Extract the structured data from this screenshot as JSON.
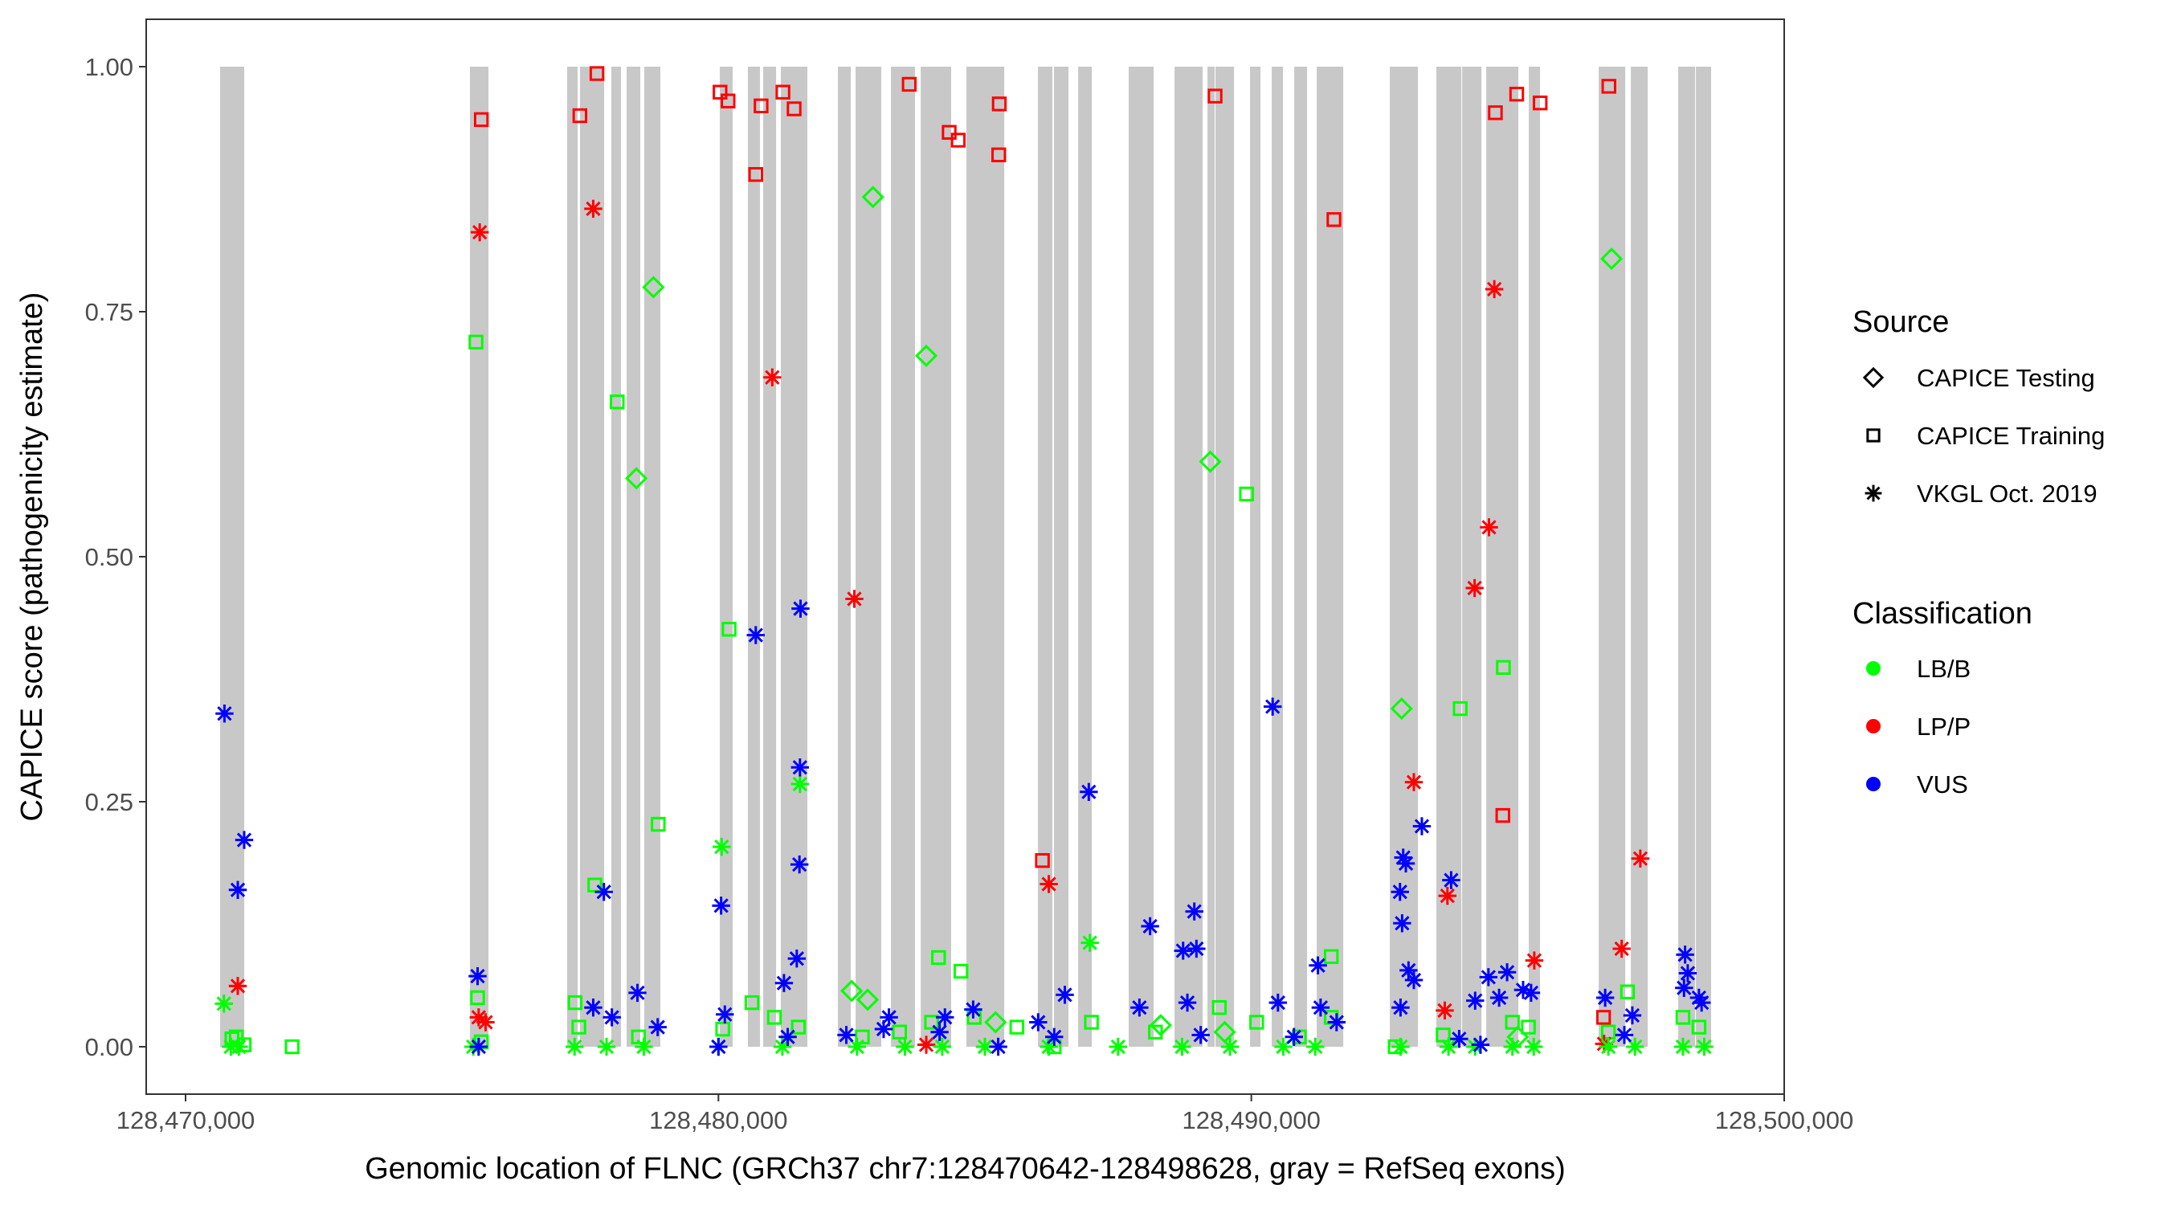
{
  "chart_data": {
    "type": "scatter",
    "title": "",
    "xlabel": "Genomic location of FLNC (GRCh37 chr7:128470642-128498628, gray = RefSeq exons)",
    "ylabel": "CAPICE score (pathogenicity estimate)",
    "xlim": [
      128469270,
      128500000
    ],
    "ylim": [
      -0.045,
      1.05
    ],
    "x_ticks": [
      128470000,
      128480000,
      128490000,
      128500000
    ],
    "x_tick_labels": [
      "128,470,000",
      "128,480,000",
      "128,490,000",
      "128,500,000"
    ],
    "y_ticks": [
      0,
      0.25,
      0.5,
      0.75,
      1.0
    ],
    "y_tick_labels": [
      "0.00",
      "0.25",
      "0.50",
      "0.75",
      "1.00"
    ],
    "grid": false,
    "exon_band_color": "#c8c8c8",
    "exons": [
      [
        128470648,
        128471101
      ],
      [
        128475337,
        128475684
      ],
      [
        128477161,
        128477357
      ],
      [
        128477402,
        128477855
      ],
      [
        128477990,
        128478171
      ],
      [
        128478277,
        128478533
      ],
      [
        128478608,
        128478910
      ],
      [
        128480026,
        128480267
      ],
      [
        128480553,
        128480780
      ],
      [
        128480840,
        128481081
      ],
      [
        128481171,
        128481669
      ],
      [
        128482242,
        128482483
      ],
      [
        128482574,
        128483056
      ],
      [
        128483237,
        128483689
      ],
      [
        128483795,
        128484367
      ],
      [
        128484654,
        128485363
      ],
      [
        128485996,
        128486267
      ],
      [
        128486297,
        128486569
      ],
      [
        128486750,
        128487006
      ],
      [
        128487699,
        128488167
      ],
      [
        128488559,
        128489086
      ],
      [
        128489177,
        128489312
      ],
      [
        128489328,
        128489675
      ],
      [
        128489976,
        128490172
      ],
      [
        128490383,
        128490594
      ],
      [
        128490805,
        128491046
      ],
      [
        128491227,
        128491725
      ],
      [
        128492599,
        128493127
      ],
      [
        128493473,
        128493941
      ],
      [
        128493956,
        128494318
      ],
      [
        128494408,
        128495011
      ],
      [
        128495207,
        128495418
      ],
      [
        128496519,
        128497017
      ],
      [
        128497122,
        128497439
      ],
      [
        128498011,
        128498328
      ],
      [
        128498343,
        128498628
      ]
    ],
    "legend": {
      "position": "right",
      "source_title": "Source",
      "source_items": [
        {
          "key": "testing",
          "label": "CAPICE Testing",
          "shape": "diamond"
        },
        {
          "key": "training",
          "label": "CAPICE Training",
          "shape": "square"
        },
        {
          "key": "vkgl",
          "label": "VKGL Oct. 2019",
          "shape": "asterisk"
        }
      ],
      "class_title": "Classification",
      "class_items": [
        {
          "key": "LB/B",
          "label": "LB/B",
          "color": "#00ff00"
        },
        {
          "key": "LP/P",
          "label": "LP/P",
          "color": "#ff0000"
        },
        {
          "key": "VUS",
          "label": "VUS",
          "color": "#0000ff"
        }
      ]
    },
    "series": [
      {
        "name": "CAPICE Training / LP/P",
        "source": "training",
        "class": "LP/P",
        "points": [
          [
            128475550,
            0.946
          ],
          [
            128477400,
            0.95
          ],
          [
            128477720,
            0.993
          ],
          [
            128480030,
            0.974
          ],
          [
            128480180,
            0.965
          ],
          [
            128480700,
            0.89
          ],
          [
            128480800,
            0.96
          ],
          [
            128481210,
            0.974
          ],
          [
            128481420,
            0.957
          ],
          [
            128483580,
            0.982
          ],
          [
            128484330,
            0.933
          ],
          [
            128484500,
            0.925
          ],
          [
            128485270,
            0.962
          ],
          [
            128485260,
            0.91
          ],
          [
            128489320,
            0.97
          ],
          [
            128491550,
            0.844
          ],
          [
            128486080,
            0.19
          ],
          [
            128494580,
            0.953
          ],
          [
            128494980,
            0.972
          ],
          [
            128495420,
            0.963
          ],
          [
            128494720,
            0.236
          ],
          [
            128496710,
            0.98
          ],
          [
            128496610,
            0.03
          ]
        ]
      },
      {
        "name": "CAPICE Training / LB/B",
        "source": "training",
        "class": "LB/B",
        "points": [
          [
            128475450,
            0.719
          ],
          [
            128478100,
            0.658
          ],
          [
            128477680,
            0.165
          ],
          [
            128480200,
            0.426
          ],
          [
            128478870,
            0.227
          ],
          [
            128484130,
            0.091
          ],
          [
            128484550,
            0.077
          ],
          [
            128489910,
            0.564
          ],
          [
            128491500,
            0.092
          ],
          [
            128493920,
            0.345
          ],
          [
            128494730,
            0.387
          ],
          [
            128497060,
            0.056
          ],
          [
            128470870,
            0.008
          ],
          [
            128470950,
            0.01
          ],
          [
            128471100,
            0.002
          ],
          [
            128475480,
            0.05
          ],
          [
            128475550,
            0.005
          ],
          [
            128477310,
            0.045
          ],
          [
            128477380,
            0.02
          ],
          [
            128478500,
            0.01
          ],
          [
            128480080,
            0.018
          ],
          [
            128480630,
            0.045
          ],
          [
            128481050,
            0.03
          ],
          [
            128481500,
            0.02
          ],
          [
            128482700,
            0.01
          ],
          [
            128483400,
            0.015
          ],
          [
            128484000,
            0.025
          ],
          [
            128484800,
            0.03
          ],
          [
            128485600,
            0.02
          ],
          [
            128487000,
            0.025
          ],
          [
            128488200,
            0.015
          ],
          [
            128489400,
            0.04
          ],
          [
            128490100,
            0.025
          ],
          [
            128490900,
            0.01
          ],
          [
            128491500,
            0.03
          ],
          [
            128493600,
            0.012
          ],
          [
            128494900,
            0.025
          ],
          [
            128495200,
            0.02
          ],
          [
            128496700,
            0.015
          ],
          [
            128498100,
            0.03
          ],
          [
            128498400,
            0.02
          ],
          [
            128472000,
            0.0
          ],
          [
            128486300,
            0.0
          ],
          [
            128492700,
            0.0
          ]
        ]
      },
      {
        "name": "CAPICE Testing / LB/B",
        "source": "testing",
        "class": "LB/B",
        "points": [
          [
            128482900,
            0.867
          ],
          [
            128478780,
            0.775
          ],
          [
            128483900,
            0.705
          ],
          [
            128478460,
            0.58
          ],
          [
            128489230,
            0.597
          ],
          [
            128492820,
            0.345
          ],
          [
            128496760,
            0.804
          ],
          [
            128482500,
            0.057
          ],
          [
            128482800,
            0.048
          ],
          [
            128485200,
            0.025
          ],
          [
            128488300,
            0.022
          ],
          [
            128489500,
            0.015
          ],
          [
            128495000,
            0.01
          ]
        ]
      },
      {
        "name": "VKGL / LP/P",
        "source": "vkgl",
        "class": "LP/P",
        "points": [
          [
            128475520,
            0.831
          ],
          [
            128477650,
            0.855
          ],
          [
            128481010,
            0.683
          ],
          [
            128482550,
            0.457
          ],
          [
            128486200,
            0.166
          ],
          [
            128493050,
            0.27
          ],
          [
            128494560,
            0.773
          ],
          [
            128494460,
            0.53
          ],
          [
            128494190,
            0.468
          ],
          [
            128493680,
            0.154
          ],
          [
            128497300,
            0.192
          ],
          [
            128496950,
            0.1
          ],
          [
            128495310,
            0.088
          ],
          [
            128493630,
            0.037
          ],
          [
            128470980,
            0.062
          ],
          [
            128475500,
            0.03
          ],
          [
            128475630,
            0.025
          ],
          [
            128483900,
            0.002
          ],
          [
            128496620,
            0.003
          ]
        ]
      },
      {
        "name": "VKGL / LB/B",
        "source": "vkgl",
        "class": "LB/B",
        "points": [
          [
            128470720,
            0.044
          ],
          [
            128480060,
            0.204
          ],
          [
            128481530,
            0.268
          ],
          [
            128486970,
            0.106
          ],
          [
            128470850,
            0.0
          ],
          [
            128471000,
            0.0
          ],
          [
            128475400,
            0.0
          ],
          [
            128477300,
            0.0
          ],
          [
            128477900,
            0.0
          ],
          [
            128478600,
            0.0
          ],
          [
            128480000,
            0.0
          ],
          [
            128481200,
            0.0
          ],
          [
            128482600,
            0.0
          ],
          [
            128483500,
            0.0
          ],
          [
            128484200,
            0.0
          ],
          [
            128485000,
            0.0
          ],
          [
            128486200,
            0.0
          ],
          [
            128487500,
            0.0
          ],
          [
            128488700,
            0.0
          ],
          [
            128489600,
            0.0
          ],
          [
            128490600,
            0.0
          ],
          [
            128491200,
            0.0
          ],
          [
            128492800,
            0.0
          ],
          [
            128493700,
            0.0
          ],
          [
            128494200,
            0.0
          ],
          [
            128494900,
            0.0
          ],
          [
            128495300,
            0.0
          ],
          [
            128496700,
            0.0
          ],
          [
            128497200,
            0.0
          ],
          [
            128498100,
            0.0
          ],
          [
            128498500,
            0.0
          ]
        ]
      },
      {
        "name": "VKGL / VUS",
        "source": "vkgl",
        "class": "VUS",
        "points": [
          [
            128470730,
            0.34
          ],
          [
            128471100,
            0.211
          ],
          [
            128470980,
            0.16
          ],
          [
            128475480,
            0.072
          ],
          [
            128475500,
            0.0
          ],
          [
            128477650,
            0.04
          ],
          [
            128477850,
            0.158
          ],
          [
            128478000,
            0.03
          ],
          [
            128478480,
            0.055
          ],
          [
            128478860,
            0.02
          ],
          [
            128480700,
            0.42
          ],
          [
            128481540,
            0.447
          ],
          [
            128481530,
            0.285
          ],
          [
            128481520,
            0.186
          ],
          [
            128481470,
            0.09
          ],
          [
            128481230,
            0.065
          ],
          [
            128480050,
            0.144
          ],
          [
            128480120,
            0.033
          ],
          [
            128480000,
            0.0
          ],
          [
            128481300,
            0.01
          ],
          [
            128482400,
            0.012
          ],
          [
            128483200,
            0.03
          ],
          [
            128483100,
            0.018
          ],
          [
            128484250,
            0.03
          ],
          [
            128484150,
            0.015
          ],
          [
            128484780,
            0.038
          ],
          [
            128485250,
            0.0
          ],
          [
            128486000,
            0.025
          ],
          [
            128486500,
            0.053
          ],
          [
            128486950,
            0.26
          ],
          [
            128486300,
            0.01
          ],
          [
            128487900,
            0.04
          ],
          [
            128488100,
            0.123
          ],
          [
            128488720,
            0.098
          ],
          [
            128488930,
            0.138
          ],
          [
            128488970,
            0.1
          ],
          [
            128488800,
            0.045
          ],
          [
            128489050,
            0.012
          ],
          [
            128490400,
            0.347
          ],
          [
            128490500,
            0.045
          ],
          [
            128490800,
            0.01
          ],
          [
            128491250,
            0.083
          ],
          [
            128491300,
            0.04
          ],
          [
            128491600,
            0.025
          ],
          [
            128492850,
            0.193
          ],
          [
            128492790,
            0.158
          ],
          [
            128492830,
            0.126
          ],
          [
            128492900,
            0.187
          ],
          [
            128493200,
            0.225
          ],
          [
            128492950,
            0.078
          ],
          [
            128493050,
            0.068
          ],
          [
            128492800,
            0.04
          ],
          [
            128493750,
            0.17
          ],
          [
            128494200,
            0.047
          ],
          [
            128494450,
            0.071
          ],
          [
            128494800,
            0.076
          ],
          [
            128495100,
            0.058
          ],
          [
            128494650,
            0.05
          ],
          [
            128495250,
            0.055
          ],
          [
            128496640,
            0.05
          ],
          [
            128497150,
            0.032
          ],
          [
            128498140,
            0.094
          ],
          [
            128498190,
            0.075
          ],
          [
            128498120,
            0.06
          ],
          [
            128498400,
            0.05
          ],
          [
            128498450,
            0.045
          ],
          [
            128493900,
            0.008
          ],
          [
            128494300,
            0.002
          ],
          [
            128497000,
            0.012
          ]
        ]
      }
    ]
  }
}
